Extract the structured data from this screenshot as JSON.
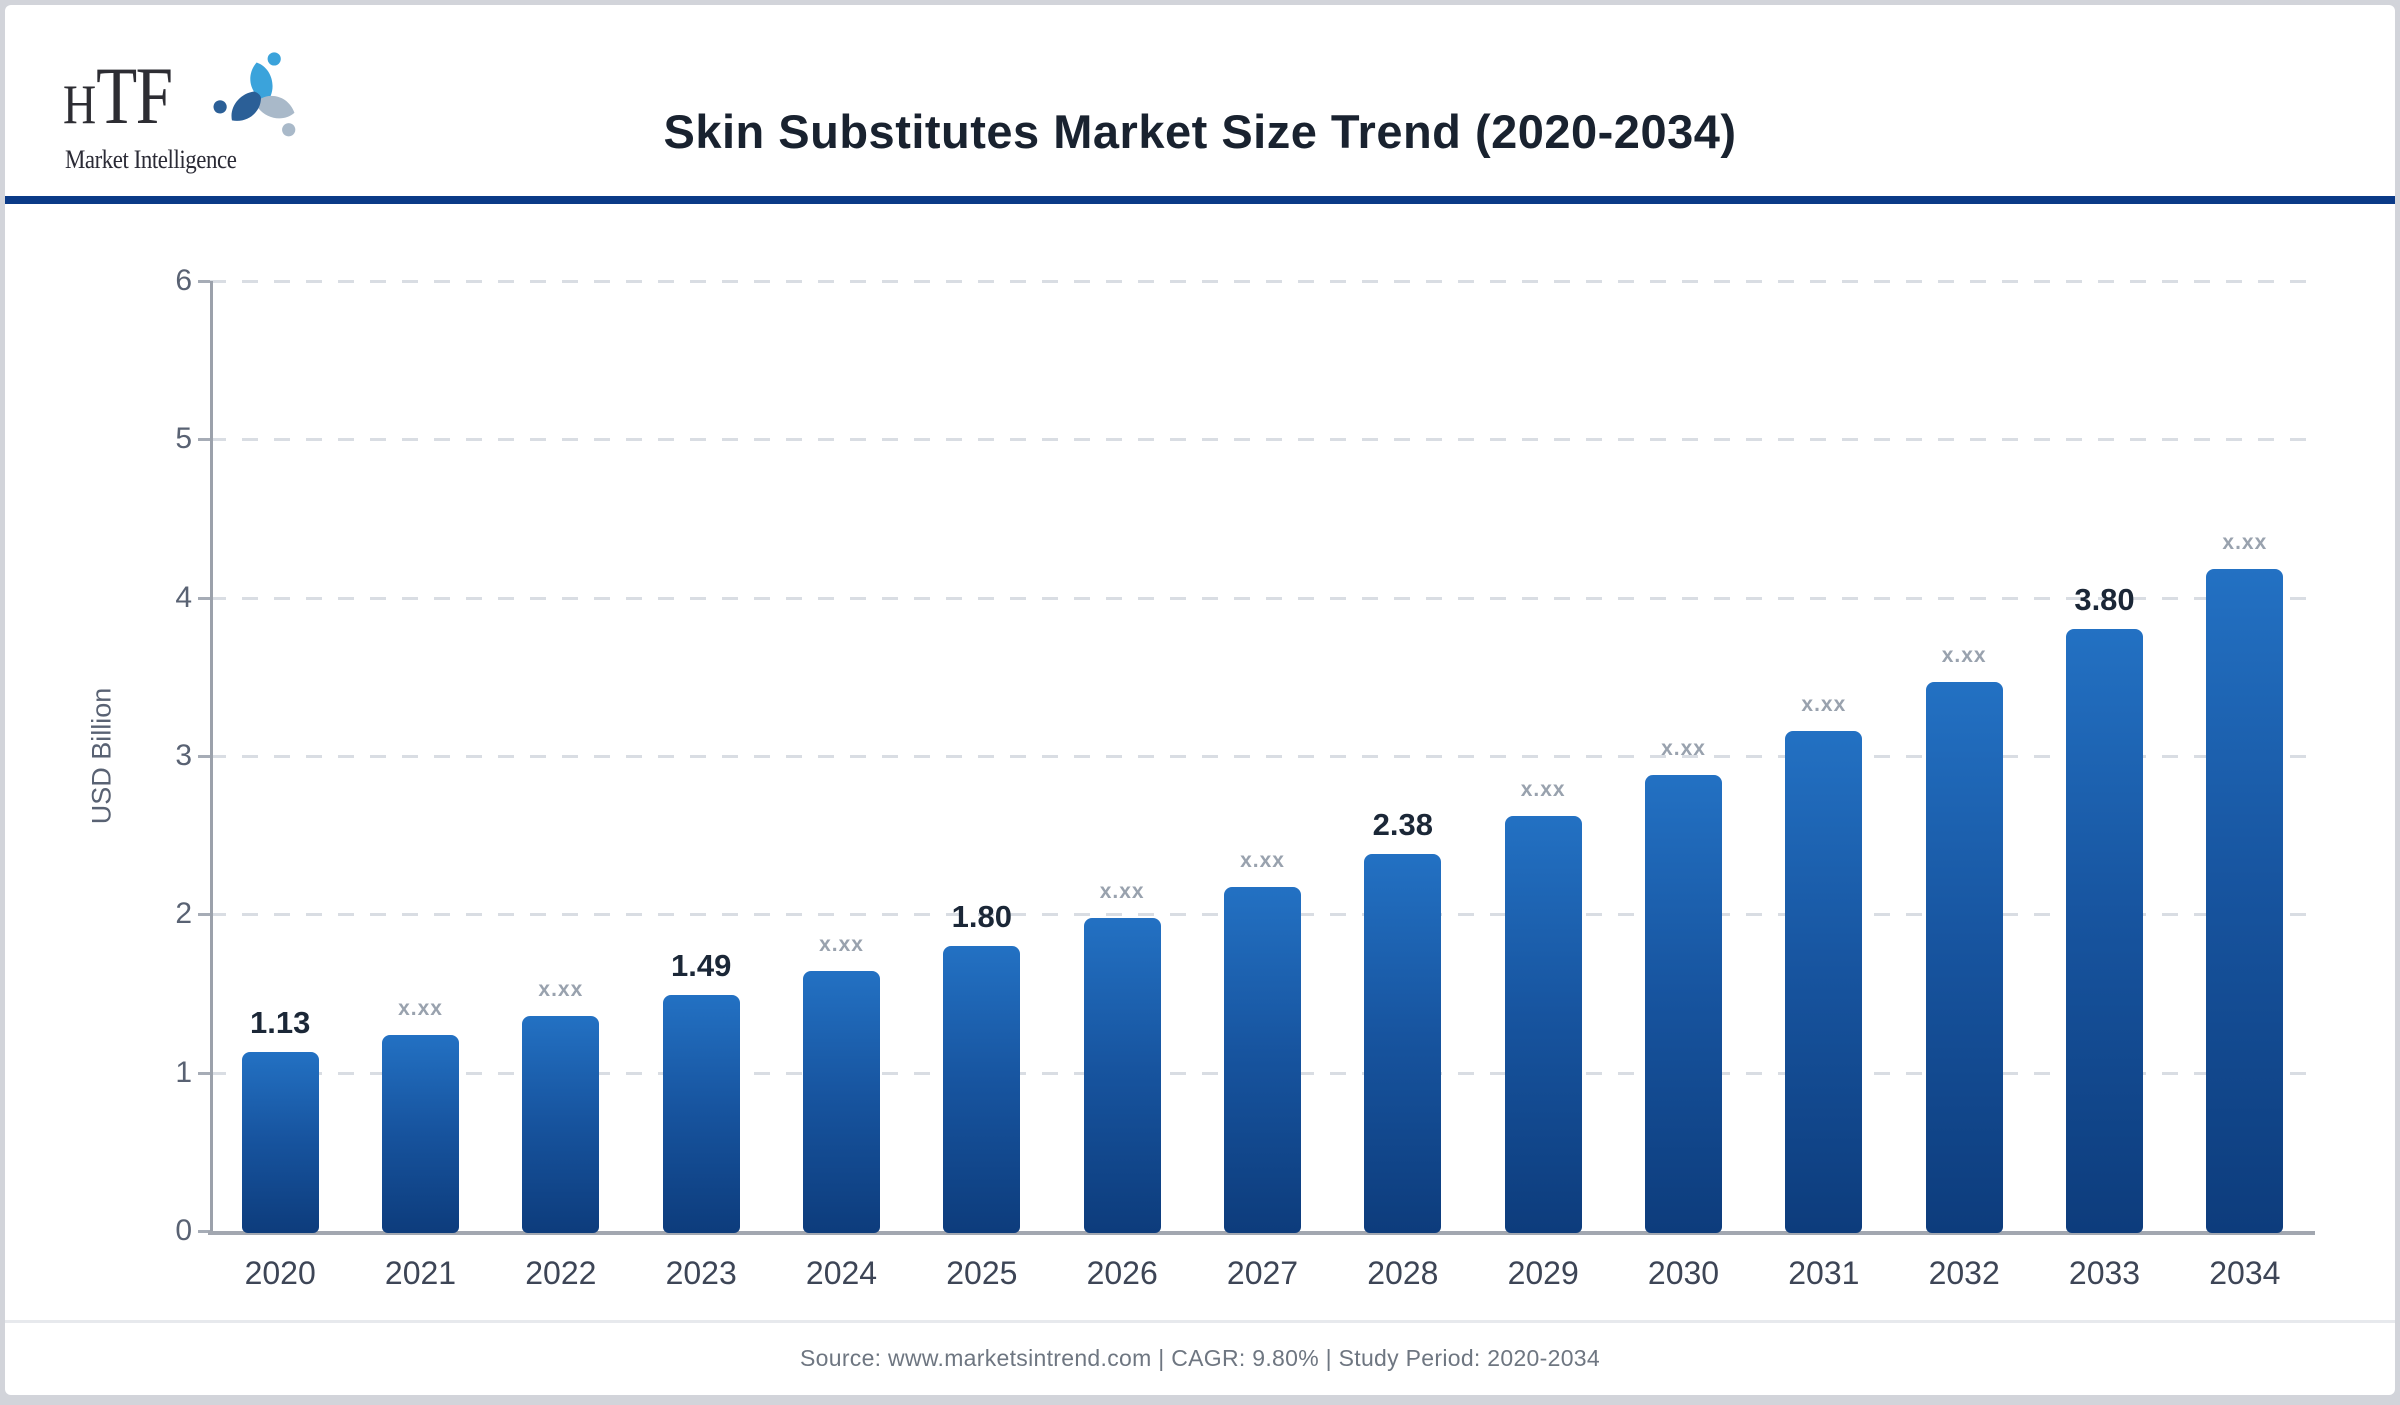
{
  "header": {
    "title": "Skin Substitutes Market Size Trend (2020-2034)"
  },
  "logo": {
    "text_h": "H",
    "text_tf": "TF",
    "subtitle": "Market Intelligence",
    "swirl_colors": [
      "#3ba3db",
      "#a9b9c9",
      "#2b5f97"
    ]
  },
  "chart_data": {
    "type": "bar",
    "title": "Skin Substitutes Market Size Trend (2020-2034)",
    "xlabel": "",
    "ylabel": "USD Billion",
    "ylim": [
      0,
      6
    ],
    "yticks": [
      0,
      1,
      2,
      3,
      4,
      5,
      6
    ],
    "grid": "horizontal-dashed",
    "legend": "none",
    "categories": [
      "2020",
      "2021",
      "2022",
      "2023",
      "2024",
      "2025",
      "2026",
      "2027",
      "2028",
      "2029",
      "2030",
      "2031",
      "2032",
      "2033",
      "2034"
    ],
    "values": [
      1.13,
      1.24,
      1.36,
      1.49,
      1.64,
      1.8,
      1.98,
      2.17,
      2.38,
      2.62,
      2.88,
      3.16,
      3.47,
      3.8,
      4.18
    ],
    "bar_labels": [
      "1.13",
      "x.xx",
      "x.xx",
      "1.49",
      "x.xx",
      "1.80",
      "x.xx",
      "x.xx",
      "2.38",
      "x.xx",
      "x.xx",
      "x.xx",
      "x.xx",
      "3.80",
      "x.xx"
    ],
    "bar_color_top": "#2371c3",
    "bar_color_bottom": "#0d3c7c",
    "grid_color": "#d9dde3",
    "axis_color": "#9ba1ab"
  },
  "footer": {
    "text": "Source: www.marketsintrend.com  |  CAGR: 9.80%  |  Study Period: 2020-2034"
  },
  "colors": {
    "header_rule": "#0a3a87",
    "page_border": "#d2d4da",
    "title_text": "#19222f"
  }
}
